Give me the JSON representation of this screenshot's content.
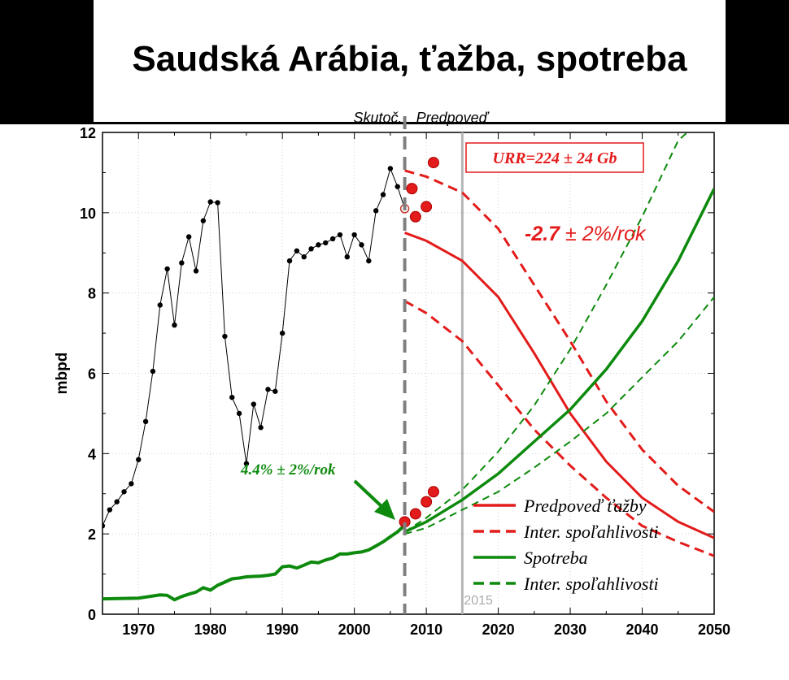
{
  "title": "Saudská Arábia, ťažba, spotreba",
  "chart_data": {
    "type": "line",
    "xlim": [
      1965,
      2050
    ],
    "ylim": [
      0,
      12
    ],
    "ylabel": "mbpd",
    "xticks": [
      "1970",
      "1980",
      "1990",
      "2000",
      "2010",
      "2020",
      "2030",
      "2040",
      "2050"
    ],
    "yticks": [
      "0",
      "2",
      "4",
      "6",
      "8",
      "10",
      "12"
    ],
    "grid": true,
    "legend_position": "bottom-right",
    "colors": {
      "production": "#000000",
      "forecast": "#e31b1b",
      "consumption": "#0d8a0d",
      "divider": "#808080",
      "marker_2015": "#b5b5b5"
    },
    "labels": {
      "actual": "Skutoč.",
      "forecast": "Predpoveď",
      "urr": "URR=224 ± 24 Gb",
      "decline_rate_value": "-2.7",
      "decline_rate_rest": " ± 2%/rok",
      "growth_rate": "4.4% ± 2%/rok",
      "year_marker": "2015"
    },
    "legend": [
      {
        "label": "Predpoveď ťažby",
        "color": "#e31b1b",
        "style": "solid"
      },
      {
        "label": "Inter. spoľahlivosti",
        "color": "#e31b1b",
        "style": "dashed"
      },
      {
        "label": "Spotreba",
        "color": "#0d8a0d",
        "style": "solid"
      },
      {
        "label": "Inter. spoľahlivosti",
        "color": "#0d8a0d",
        "style": "dashed"
      }
    ],
    "series": [
      {
        "role": "production_history",
        "x": [
          1965,
          1966,
          1967,
          1968,
          1969,
          1970,
          1971,
          1972,
          1973,
          1974,
          1975,
          1976,
          1977,
          1978,
          1979,
          1980,
          1981,
          1982,
          1983,
          1984,
          1985,
          1986,
          1987,
          1988,
          1989,
          1990,
          1991,
          1992,
          1993,
          1994,
          1995,
          1996,
          1997,
          1998,
          1999,
          2000,
          2001,
          2002,
          2003,
          2004,
          2005,
          2006,
          2007
        ],
        "y": [
          2.2,
          2.6,
          2.8,
          3.05,
          3.25,
          3.85,
          4.8,
          6.05,
          7.7,
          8.6,
          7.2,
          8.75,
          9.4,
          8.55,
          9.8,
          10.27,
          10.25,
          6.92,
          5.4,
          5.0,
          3.75,
          5.23,
          4.65,
          5.6,
          5.55,
          7.0,
          8.8,
          9.05,
          8.9,
          9.1,
          9.2,
          9.25,
          9.35,
          9.45,
          8.9,
          9.45,
          9.2,
          8.8,
          10.05,
          10.45,
          11.1,
          10.65,
          10.1
        ]
      },
      {
        "role": "production_recent",
        "x": [
          2008,
          2008.5,
          2010,
          2011
        ],
        "y": [
          10.6,
          9.9,
          10.15,
          11.25
        ]
      },
      {
        "role": "consumption_history",
        "x": [
          1965,
          1970,
          1973,
          1974,
          1975,
          1976,
          1977,
          1978,
          1979,
          1980,
          1981,
          1982,
          1983,
          1984,
          1985,
          1986,
          1987,
          1988,
          1989,
          1990,
          1991,
          1992,
          1993,
          1994,
          1995,
          1996,
          1997,
          1998,
          1999,
          2000,
          2001,
          2002,
          2003,
          2004,
          2005,
          2006,
          2007
        ],
        "y": [
          0.38,
          0.4,
          0.48,
          0.47,
          0.36,
          0.44,
          0.5,
          0.55,
          0.66,
          0.6,
          0.72,
          0.8,
          0.88,
          0.9,
          0.93,
          0.94,
          0.95,
          0.97,
          1.0,
          1.18,
          1.2,
          1.15,
          1.22,
          1.3,
          1.28,
          1.35,
          1.4,
          1.5,
          1.5,
          1.53,
          1.55,
          1.6,
          1.7,
          1.8,
          1.93,
          2.05,
          2.22
        ]
      },
      {
        "role": "consumption_recent",
        "x": [
          2007,
          2008.5,
          2010,
          2011
        ],
        "y": [
          2.3,
          2.5,
          2.8,
          3.05
        ]
      },
      {
        "role": "production_forecast",
        "x": [
          2007,
          2010,
          2015,
          2020,
          2025,
          2030,
          2035,
          2040,
          2045,
          2050
        ],
        "y": [
          9.5,
          9.3,
          8.8,
          7.9,
          6.5,
          5.0,
          3.8,
          2.9,
          2.3,
          1.9
        ]
      },
      {
        "role": "production_forecast_upper",
        "x": [
          2007,
          2010,
          2015,
          2020,
          2025,
          2030,
          2035,
          2040,
          2045,
          2050
        ],
        "y": [
          11.05,
          10.9,
          10.5,
          9.6,
          8.2,
          6.8,
          5.3,
          4.1,
          3.2,
          2.55
        ]
      },
      {
        "role": "production_forecast_lower",
        "x": [
          2007,
          2010,
          2015,
          2020,
          2025,
          2030,
          2035,
          2040,
          2045,
          2050
        ],
        "y": [
          7.8,
          7.5,
          6.8,
          5.7,
          4.6,
          3.7,
          2.9,
          2.2,
          1.8,
          1.45
        ]
      },
      {
        "role": "consumption_forecast",
        "x": [
          2007,
          2010,
          2015,
          2020,
          2025,
          2030,
          2035,
          2040,
          2045,
          2050
        ],
        "y": [
          2.05,
          2.3,
          2.85,
          3.5,
          4.3,
          5.1,
          6.1,
          7.3,
          8.8,
          10.6
        ]
      },
      {
        "role": "consumption_forecast_upper",
        "x": [
          2007,
          2010,
          2015,
          2020,
          2025,
          2030,
          2035,
          2040,
          2045,
          2050
        ],
        "y": [
          2.05,
          2.4,
          3.1,
          4.05,
          5.2,
          6.6,
          8.2,
          9.9,
          11.8,
          12.6
        ]
      },
      {
        "role": "consumption_forecast_lower",
        "x": [
          2007,
          2010,
          2015,
          2020,
          2025,
          2030,
          2035,
          2040,
          2045,
          2050
        ],
        "y": [
          2.0,
          2.15,
          2.6,
          3.05,
          3.65,
          4.3,
          5.0,
          5.9,
          6.8,
          7.9
        ]
      }
    ],
    "vertical_markers": [
      {
        "x": 2007,
        "style": "dashed"
      },
      {
        "x": 2015,
        "style": "solid"
      }
    ]
  }
}
